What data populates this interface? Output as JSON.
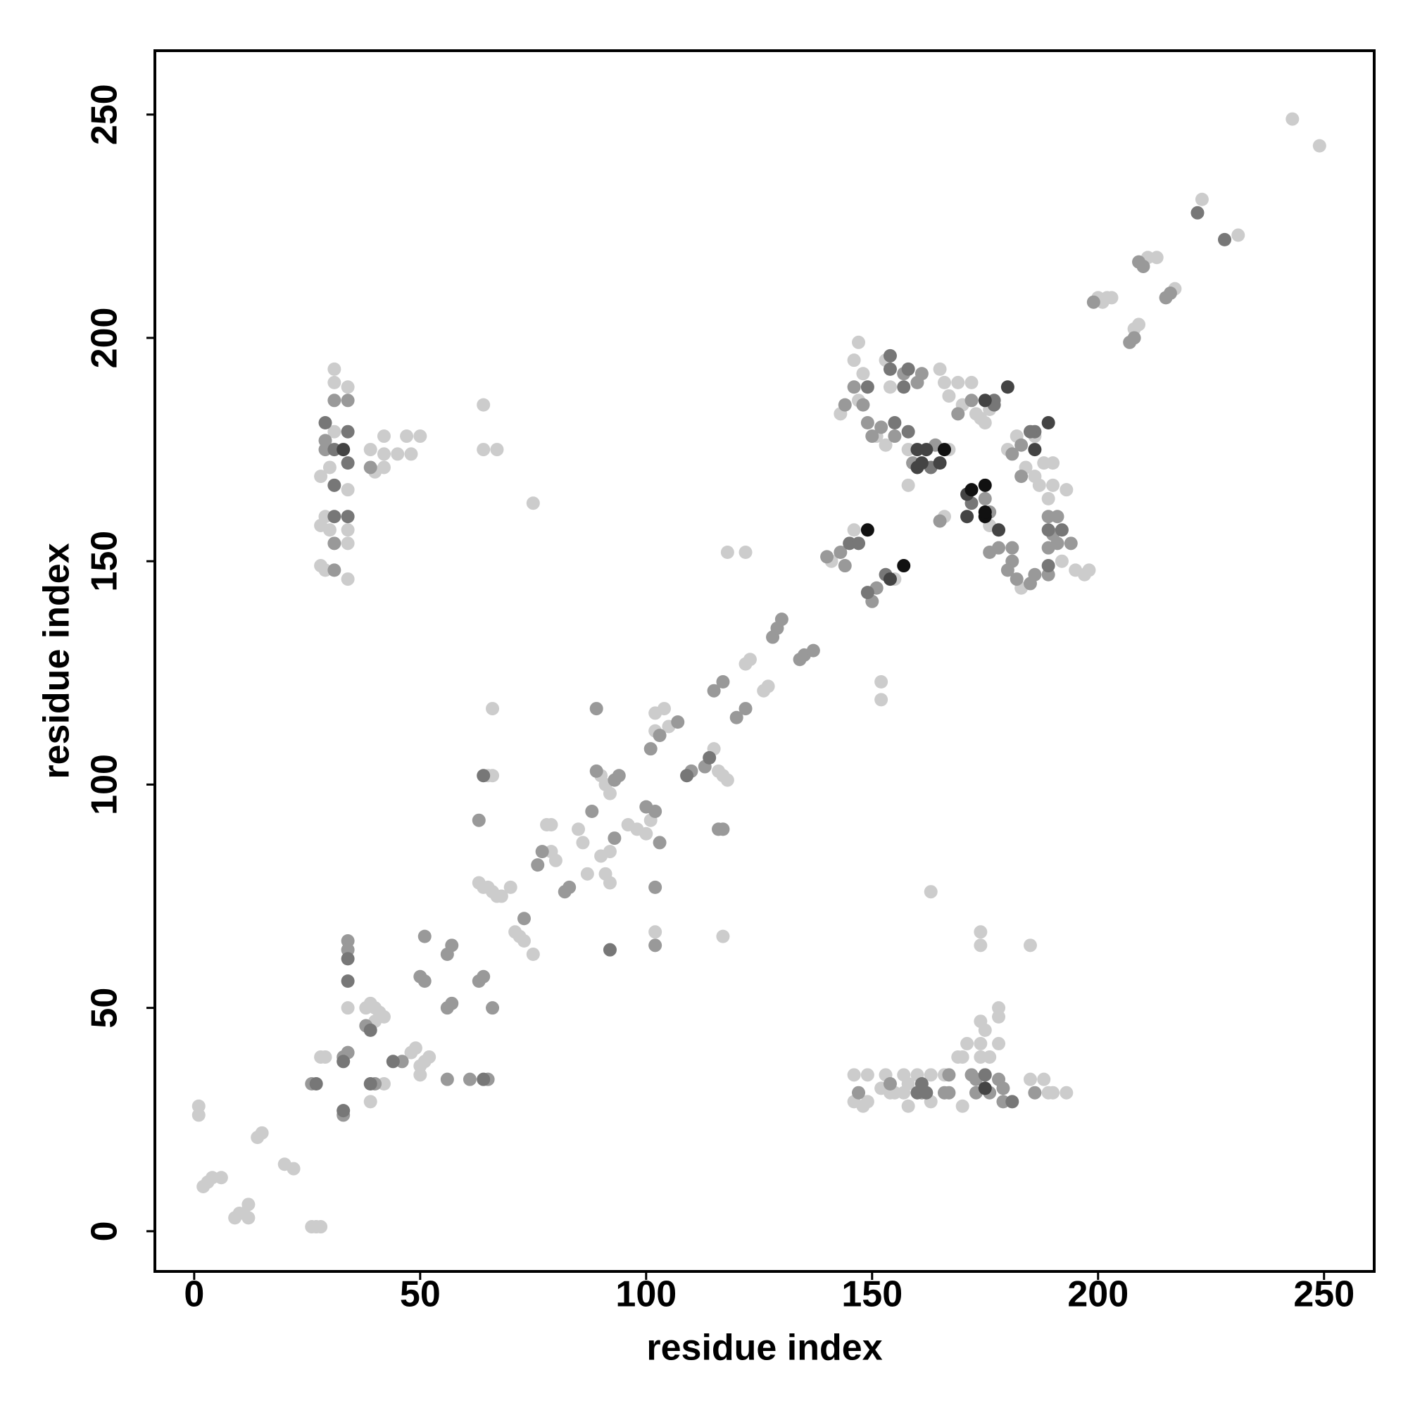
{
  "chart_data": {
    "type": "scatter",
    "xlabel": "residue index",
    "ylabel": "residue index",
    "xlim": [
      -8.7,
      261.1
    ],
    "ylim": [
      -9,
      264.3
    ],
    "xticks": [
      0,
      50,
      100,
      150,
      200,
      250
    ],
    "yticks": [
      0,
      50,
      100,
      150,
      200,
      250
    ],
    "series": [
      {
        "color": "#cccccc",
        "x": [
          1,
          1,
          2,
          3,
          4,
          6,
          9,
          10,
          11,
          12,
          12,
          14,
          15,
          20,
          22,
          26,
          27,
          28,
          29,
          28,
          34,
          38,
          39,
          40,
          41,
          40,
          42,
          39,
          42,
          48,
          49,
          50,
          51,
          52,
          50,
          63,
          64,
          65,
          66,
          67,
          68,
          70,
          65,
          66,
          66,
          71,
          72,
          73,
          75,
          75,
          78,
          79,
          79,
          80,
          85,
          86,
          87,
          90,
          91,
          92,
          91,
          92,
          90,
          92,
          96,
          98,
          100,
          101,
          102,
          102,
          102,
          104,
          105,
          115,
          116,
          117,
          118,
          117,
          118,
          122,
          122,
          123,
          126,
          127,
          141,
          146,
          155,
          152,
          152,
          163,
          28,
          28,
          28,
          29,
          29,
          30,
          30,
          31,
          31,
          31,
          34,
          34,
          34,
          34,
          34,
          39,
          40,
          42,
          42,
          42,
          45,
          47,
          48,
          50,
          64,
          64,
          67,
          143,
          146,
          147,
          147,
          148,
          151,
          153,
          153,
          154,
          158,
          158,
          167,
          166,
          165,
          166,
          167,
          169,
          170,
          172,
          173,
          174,
          175,
          176,
          176,
          180,
          182,
          184,
          186,
          186,
          187,
          188,
          189,
          190,
          190,
          192,
          193,
          195,
          197,
          198,
          183,
          146,
          146,
          148,
          149,
          149,
          152,
          153,
          154,
          155,
          157,
          157,
          158,
          158,
          160,
          163,
          163,
          166,
          169,
          170,
          170,
          171,
          174,
          174,
          174,
          175,
          176,
          178,
          178,
          178,
          185,
          188,
          189,
          190,
          193,
          174,
          174,
          185,
          200,
          201,
          202,
          203,
          208,
          209,
          211,
          213,
          217,
          223,
          231,
          243,
          249
        ],
        "values": [
          26,
          28,
          10,
          11,
          12,
          12,
          3,
          4,
          4,
          6,
          3,
          21,
          22,
          15,
          14,
          1,
          1,
          1,
          39,
          39,
          50,
          50,
          51,
          50,
          49,
          47,
          48,
          29,
          33,
          40,
          41,
          37,
          38,
          39,
          35,
          78,
          77,
          77,
          76,
          75,
          75,
          77,
          102,
          102,
          117,
          67,
          66,
          65,
          62,
          163,
          91,
          85,
          91,
          83,
          90,
          87,
          80,
          102,
          100,
          98,
          80,
          78,
          84,
          85,
          91,
          90,
          89,
          92,
          67,
          112,
          116,
          117,
          113,
          108,
          103,
          102,
          101,
          66,
          152,
          152,
          127,
          128,
          121,
          122,
          150,
          157,
          146,
          123,
          119,
          76,
          169,
          158,
          149,
          148,
          160,
          171,
          157,
          193,
          190,
          179,
          189,
          166,
          157,
          154,
          146,
          175,
          170,
          178,
          174,
          171,
          174,
          178,
          174,
          178,
          185,
          175,
          175,
          183,
          195,
          199,
          186,
          192,
          178,
          176,
          195,
          189,
          175,
          167,
          175,
          160,
          193,
          190,
          187,
          190,
          185,
          190,
          183,
          182,
          181,
          184,
          158,
          175,
          178,
          171,
          178,
          169,
          167,
          172,
          164,
          172,
          167,
          150,
          166,
          148,
          147,
          148,
          144,
          29,
          35,
          28,
          35,
          29,
          32,
          35,
          31,
          31,
          35,
          31,
          28,
          33,
          35,
          35,
          29,
          35,
          39,
          28,
          39,
          42,
          42,
          39,
          47,
          45,
          39,
          42,
          48,
          50,
          34,
          34,
          31,
          31,
          31,
          67,
          64,
          64,
          209,
          208,
          209,
          209,
          202,
          203,
          218,
          218,
          211,
          231,
          223,
          249,
          243
        ]
      },
      {
        "color": "#999999",
        "x": [
          26,
          33,
          33,
          34,
          34,
          34,
          38,
          40,
          46,
          50,
          51,
          51,
          56,
          57,
          56,
          57,
          56,
          61,
          63,
          64,
          65,
          66,
          63,
          73,
          76,
          77,
          82,
          83,
          88,
          89,
          93,
          94,
          89,
          93,
          100,
          102,
          103,
          102,
          102,
          101,
          103,
          107,
          110,
          113,
          116,
          117,
          115,
          117,
          120,
          122,
          128,
          129,
          130,
          134,
          135,
          137,
          140,
          143,
          144,
          150,
          151,
          29,
          29,
          31,
          31,
          31,
          34,
          39,
          144,
          146,
          148,
          149,
          150,
          152,
          155,
          157,
          159,
          160,
          161,
          164,
          165,
          169,
          172,
          175,
          176,
          178,
          176,
          181,
          183,
          183,
          189,
          191,
          191,
          194,
          181,
          181,
          180,
          182,
          185,
          186,
          189,
          189,
          190,
          147,
          154,
          161,
          166,
          167,
          167,
          172,
          173,
          173,
          176,
          178,
          179,
          179,
          186,
          199,
          207,
          208,
          209,
          210,
          215,
          216
        ],
        "values": [
          33,
          26,
          39,
          40,
          65,
          63,
          46,
          33,
          38,
          57,
          66,
          56,
          50,
          51,
          62,
          64,
          34,
          34,
          56,
          57,
          34,
          50,
          92,
          70,
          82,
          85,
          76,
          77,
          94,
          103,
          101,
          102,
          117,
          88,
          95,
          94,
          87,
          64,
          77,
          108,
          111,
          114,
          103,
          104,
          90,
          90,
          121,
          123,
          115,
          117,
          133,
          135,
          137,
          128,
          129,
          130,
          151,
          152,
          149,
          141,
          144,
          177,
          175,
          186,
          154,
          148,
          186,
          171,
          185,
          189,
          185,
          181,
          178,
          180,
          178,
          192,
          172,
          190,
          192,
          176,
          159,
          183,
          186,
          164,
          161,
          153,
          152,
          174,
          176,
          169,
          160,
          160,
          154,
          154,
          153,
          150,
          148,
          146,
          145,
          147,
          147,
          153,
          156,
          31,
          33,
          31,
          31,
          31,
          35,
          35,
          34,
          31,
          31,
          34,
          32,
          29,
          31,
          208,
          199,
          200,
          217,
          216,
          209,
          210
        ]
      },
      {
        "color": "#777777",
        "x": [
          27,
          33,
          33,
          34,
          34,
          39,
          39,
          44,
          64,
          64,
          92,
          109,
          114,
          145,
          147,
          149,
          153,
          29,
          31,
          31,
          31,
          34,
          34,
          34,
          149,
          154,
          154,
          155,
          157,
          158,
          158,
          163,
          172,
          177,
          177,
          186,
          185,
          189,
          192,
          189,
          160,
          161,
          162,
          175,
          181,
          222,
          228
        ],
        "values": [
          33,
          27,
          38,
          61,
          56,
          45,
          33,
          38,
          34,
          102,
          63,
          102,
          106,
          154,
          154,
          143,
          147,
          181,
          175,
          167,
          160,
          179,
          172,
          160,
          189,
          196,
          193,
          181,
          189,
          193,
          179,
          171,
          163,
          186,
          185,
          179,
          179,
          157,
          157,
          149,
          31,
          33,
          31,
          35,
          29,
          228,
          222
        ]
      },
      {
        "color": "#444444",
        "x": [
          33,
          154,
          160,
          160,
          161,
          162,
          165,
          175,
          180,
          171,
          171,
          178,
          186,
          189,
          175
        ],
        "values": [
          175,
          146,
          175,
          171,
          172,
          175,
          172,
          186,
          189,
          165,
          160,
          157,
          175,
          181,
          32
        ]
      },
      {
        "color": "#111111",
        "x": [
          149,
          157,
          166,
          172,
          175,
          175,
          175
        ],
        "values": [
          157,
          149,
          175,
          166,
          167,
          160,
          161
        ]
      }
    ]
  }
}
